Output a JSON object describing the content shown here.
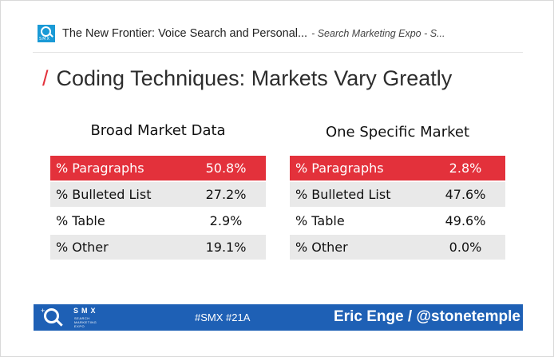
{
  "embed": {
    "title": "The New Frontier: Voice Search and Personal...",
    "subtitle": "- Search Marketing Expo - S...",
    "logo_text": "SMX"
  },
  "slide": {
    "title_slash": "/",
    "title": "Coding Techniques: Markets Vary Greatly",
    "tables": [
      {
        "title": "Broad Market Data",
        "rows": [
          {
            "label": "% Paragraphs",
            "value": "50.8%"
          },
          {
            "label": "% Bulleted List",
            "value": "27.2%"
          },
          {
            "label": "% Table",
            "value": "2.9%"
          },
          {
            "label": "% Other",
            "value": "19.1%"
          }
        ]
      },
      {
        "title": "One Specific Market",
        "rows": [
          {
            "label": "% Paragraphs",
            "value": "2.8%"
          },
          {
            "label": "% Bulleted List",
            "value": "47.6%"
          },
          {
            "label": "% Table",
            "value": "49.6%"
          },
          {
            "label": "% Other",
            "value": "0.0%"
          }
        ]
      }
    ],
    "footer": {
      "brand": "SMX",
      "brand_sub": "SEARCH MARKETING EXPO",
      "hashtag": "#SMX #21A",
      "presenter": "Eric Enge / @stonetemple"
    }
  },
  "colors": {
    "accent": "#e3313b",
    "footer": "#1e60b5",
    "logo": "#1a9ad6"
  }
}
